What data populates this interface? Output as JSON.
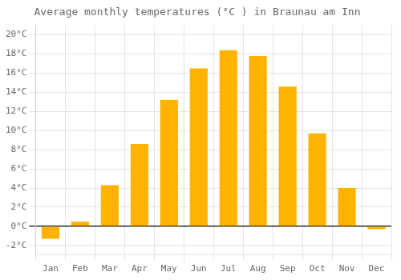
{
  "chart_data": {
    "type": "bar",
    "title": "Average monthly temperatures (°C ) in Braunau am Inn",
    "categories": [
      "Jan",
      "Feb",
      "Mar",
      "Apr",
      "May",
      "Jun",
      "Jul",
      "Aug",
      "Sep",
      "Oct",
      "Nov",
      "Dec"
    ],
    "values": [
      -1.3,
      0.5,
      4.3,
      8.6,
      13.2,
      16.5,
      18.4,
      17.8,
      14.6,
      9.7,
      4.0,
      -0.3
    ],
    "color": "#FFB300",
    "ylim": [
      -3,
      21
    ],
    "yticks": [
      {
        "value": -2,
        "label": "-2°C"
      },
      {
        "value": 0,
        "label": "0°C"
      },
      {
        "value": 2,
        "label": "2°C"
      },
      {
        "value": 4,
        "label": "4°C"
      },
      {
        "value": 6,
        "label": "6°C"
      },
      {
        "value": 8,
        "label": "8°C"
      },
      {
        "value": 10,
        "label": "10°C"
      },
      {
        "value": 12,
        "label": "12°C"
      },
      {
        "value": 14,
        "label": "14°C"
      },
      {
        "value": 16,
        "label": "16°C"
      },
      {
        "value": 18,
        "label": "18°C"
      },
      {
        "value": 20,
        "label": "20°C"
      }
    ],
    "grid": true
  }
}
